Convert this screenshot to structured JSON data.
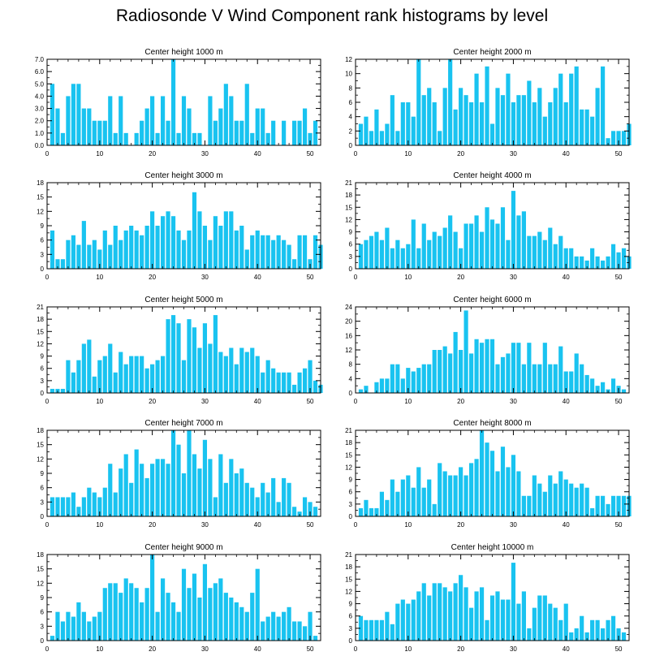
{
  "title": "Radiosonde V Wind Component rank histograms by level",
  "bar_color": "#19c3f0",
  "chart_data": [
    {
      "type": "bar",
      "title": "Center height 1000 m",
      "xlim": [
        0,
        52
      ],
      "ylim": [
        0,
        7
      ],
      "xticks": [
        0,
        10,
        20,
        30,
        40,
        50
      ],
      "yticks": [
        0,
        1,
        2,
        3,
        4,
        5,
        6,
        7
      ],
      "ytick_labels": [
        "0.0",
        "1.0",
        "2.0",
        "3.0",
        "4.0",
        "5.0",
        "6.0",
        "7.0"
      ],
      "values": [
        5,
        3,
        1,
        4,
        5,
        5,
        3,
        3,
        2,
        2,
        2,
        4,
        1,
        4,
        1,
        0,
        1,
        2,
        3,
        4,
        1,
        4,
        2,
        7,
        1,
        4,
        3,
        1,
        1,
        0,
        4,
        2,
        3,
        5,
        4,
        2,
        2,
        5,
        1,
        3,
        3,
        1,
        2,
        0,
        2,
        0,
        2,
        2,
        3,
        1,
        2,
        0
      ]
    },
    {
      "type": "bar",
      "title": "Center height 2000 m",
      "xlim": [
        0,
        52
      ],
      "ylim": [
        0,
        12
      ],
      "xticks": [
        0,
        10,
        20,
        30,
        40,
        50
      ],
      "yticks": [
        0,
        2,
        4,
        6,
        8,
        10,
        12
      ],
      "ytick_labels": [
        "0",
        "2",
        "4",
        "6",
        "8",
        "10",
        "12"
      ],
      "values": [
        3,
        4,
        2,
        5,
        2,
        3,
        7,
        2,
        6,
        6,
        4,
        12,
        7,
        8,
        6,
        2,
        8,
        12,
        5,
        8,
        7,
        6,
        10,
        6,
        11,
        3,
        8,
        7,
        10,
        6,
        7,
        7,
        9,
        6,
        8,
        4,
        6,
        8,
        10,
        6,
        10,
        11,
        5,
        5,
        4,
        8,
        11,
        1,
        2,
        2,
        2,
        3
      ]
    },
    {
      "type": "bar",
      "title": "Center height 3000 m",
      "xlim": [
        0,
        52
      ],
      "ylim": [
        0,
        18
      ],
      "xticks": [
        0,
        10,
        20,
        30,
        40,
        50
      ],
      "yticks": [
        0,
        3,
        6,
        9,
        12,
        15,
        18
      ],
      "ytick_labels": [
        "0",
        "3",
        "6",
        "9",
        "12",
        "15",
        "18"
      ],
      "values": [
        8,
        2,
        2,
        6,
        7,
        5,
        10,
        5,
        6,
        4,
        8,
        5,
        9,
        6,
        8,
        9,
        8,
        7,
        9,
        12,
        9,
        11,
        12,
        11,
        8,
        6,
        8,
        16,
        12,
        9,
        6,
        11,
        9,
        12,
        12,
        8,
        9,
        4,
        7,
        8,
        7,
        7,
        6,
        7,
        6,
        5,
        2,
        7,
        7,
        2,
        7,
        5
      ]
    },
    {
      "type": "bar",
      "title": "Center height 4000 m",
      "xlim": [
        0,
        52
      ],
      "ylim": [
        0,
        21
      ],
      "xticks": [
        0,
        10,
        20,
        30,
        40,
        50
      ],
      "yticks": [
        0,
        3,
        6,
        9,
        12,
        15,
        18,
        21
      ],
      "ytick_labels": [
        "0",
        "3",
        "6",
        "9",
        "12",
        "15",
        "18",
        "21"
      ],
      "values": [
        6,
        7,
        8,
        9,
        7,
        10,
        5,
        7,
        5,
        6,
        12,
        5,
        11,
        7,
        9,
        8,
        10,
        13,
        9,
        5,
        11,
        11,
        13,
        9,
        15,
        12,
        11,
        15,
        7,
        19,
        13,
        14,
        8,
        8,
        9,
        7,
        10,
        6,
        8,
        5,
        5,
        3,
        3,
        2,
        5,
        3,
        2,
        3,
        6,
        4,
        5,
        3
      ]
    },
    {
      "type": "bar",
      "title": "Center height 5000 m",
      "xlim": [
        0,
        52
      ],
      "ylim": [
        0,
        21
      ],
      "xticks": [
        0,
        10,
        20,
        30,
        40,
        50
      ],
      "yticks": [
        0,
        3,
        6,
        9,
        12,
        15,
        18,
        21
      ],
      "ytick_labels": [
        "0",
        "3",
        "6",
        "9",
        "12",
        "15",
        "18",
        "21"
      ],
      "values": [
        1,
        1,
        1,
        8,
        5,
        8,
        12,
        13,
        4,
        8,
        9,
        12,
        5,
        10,
        7,
        9,
        9,
        9,
        6,
        7,
        8,
        9,
        18,
        19,
        17,
        8,
        18,
        16,
        11,
        17,
        12,
        19,
        10,
        9,
        11,
        7,
        11,
        10,
        11,
        9,
        5,
        8,
        6,
        5,
        5,
        5,
        2,
        5,
        6,
        8,
        3,
        2
      ]
    },
    {
      "type": "bar",
      "title": "Center height 6000 m",
      "xlim": [
        0,
        52
      ],
      "ylim": [
        0,
        24
      ],
      "xticks": [
        0,
        10,
        20,
        30,
        40,
        50
      ],
      "yticks": [
        0,
        4,
        8,
        12,
        16,
        20,
        24
      ],
      "ytick_labels": [
        "0",
        "4",
        "8",
        "12",
        "16",
        "20",
        "24"
      ],
      "values": [
        1,
        2,
        0,
        3,
        4,
        4,
        8,
        8,
        4,
        7,
        6,
        7,
        8,
        8,
        12,
        12,
        13,
        11,
        17,
        12,
        23,
        11,
        15,
        14,
        15,
        15,
        8,
        10,
        11,
        14,
        14,
        8,
        14,
        8,
        8,
        14,
        8,
        8,
        13,
        6,
        6,
        11,
        8,
        5,
        4,
        2,
        3,
        1,
        4,
        2,
        1,
        0
      ]
    },
    {
      "type": "bar",
      "title": "Center height 7000 m",
      "xlim": [
        0,
        52
      ],
      "ylim": [
        0,
        18
      ],
      "xticks": [
        0,
        10,
        20,
        30,
        40,
        50
      ],
      "yticks": [
        0,
        3,
        6,
        9,
        12,
        15,
        18
      ],
      "ytick_labels": [
        "0",
        "3",
        "6",
        "9",
        "12",
        "15",
        "18"
      ],
      "values": [
        4,
        4,
        4,
        4,
        5,
        2,
        4,
        6,
        5,
        4,
        6,
        11,
        5,
        10,
        13,
        7,
        14,
        11,
        8,
        11,
        12,
        12,
        11,
        18,
        15,
        9,
        18,
        13,
        10,
        16,
        12,
        4,
        13,
        7,
        12,
        9,
        10,
        7,
        6,
        4,
        7,
        5,
        8,
        3,
        8,
        7,
        2,
        1,
        4,
        3,
        2,
        0
      ]
    },
    {
      "type": "bar",
      "title": "Center height 8000 m",
      "xlim": [
        0,
        52
      ],
      "ylim": [
        0,
        21
      ],
      "xticks": [
        0,
        10,
        20,
        30,
        40,
        50
      ],
      "yticks": [
        0,
        3,
        6,
        9,
        12,
        15,
        18,
        21
      ],
      "ytick_labels": [
        "0",
        "3",
        "6",
        "9",
        "12",
        "15",
        "18",
        "21"
      ],
      "values": [
        2,
        4,
        2,
        2,
        6,
        4,
        9,
        6,
        9,
        10,
        7,
        12,
        7,
        9,
        3,
        13,
        11,
        10,
        10,
        12,
        10,
        13,
        14,
        21,
        18,
        16,
        11,
        17,
        12,
        15,
        11,
        5,
        5,
        10,
        8,
        6,
        10,
        8,
        11,
        9,
        8,
        7,
        8,
        7,
        2,
        5,
        5,
        3,
        5,
        5,
        5,
        5
      ]
    },
    {
      "type": "bar",
      "title": "Center height 9000 m",
      "xlim": [
        0,
        52
      ],
      "ylim": [
        0,
        18
      ],
      "xticks": [
        0,
        10,
        20,
        30,
        40,
        50
      ],
      "yticks": [
        0,
        3,
        6,
        9,
        12,
        15,
        18
      ],
      "ytick_labels": [
        "0",
        "3",
        "6",
        "9",
        "12",
        "15",
        "18"
      ],
      "values": [
        1,
        6,
        4,
        6,
        5,
        8,
        6,
        4,
        5,
        6,
        11,
        12,
        12,
        10,
        13,
        12,
        11,
        8,
        11,
        18,
        6,
        13,
        10,
        8,
        6,
        15,
        11,
        14,
        9,
        16,
        11,
        12,
        13,
        10,
        9,
        8,
        7,
        6,
        10,
        15,
        4,
        5,
        6,
        5,
        6,
        7,
        4,
        4,
        3,
        6,
        1,
        0
      ]
    },
    {
      "type": "bar",
      "title": "Center height 10000 m",
      "xlim": [
        0,
        52
      ],
      "ylim": [
        0,
        21
      ],
      "xticks": [
        0,
        10,
        20,
        30,
        40,
        50
      ],
      "yticks": [
        0,
        3,
        6,
        9,
        12,
        15,
        18,
        21
      ],
      "ytick_labels": [
        "0",
        "3",
        "6",
        "9",
        "12",
        "15",
        "18",
        "21"
      ],
      "values": [
        6,
        5,
        5,
        5,
        5,
        7,
        4,
        9,
        10,
        9,
        10,
        12,
        14,
        11,
        14,
        14,
        13,
        12,
        14,
        16,
        13,
        8,
        12,
        13,
        5,
        11,
        12,
        10,
        10,
        19,
        9,
        12,
        3,
        8,
        11,
        11,
        9,
        8,
        5,
        9,
        2,
        3,
        6,
        2,
        5,
        5,
        3,
        5,
        6,
        3,
        2,
        0
      ]
    }
  ]
}
